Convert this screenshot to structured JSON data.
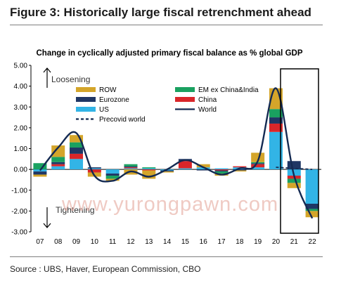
{
  "figure_title": "Figure 3: Historically large fiscal retrenchment ahead",
  "source": "Source : UBS, Haver, European Commission, CBO",
  "watermark": "www.yurongpawn.com",
  "chart_data": {
    "type": "bar",
    "stacked": true,
    "title": "Change in cyclically adjusted primary fiscal balance as % global GDP",
    "xlabel": "",
    "ylabel": "",
    "categories": [
      "07",
      "08",
      "09",
      "10",
      "11",
      "12",
      "13",
      "14",
      "15",
      "16",
      "17",
      "18",
      "19",
      "20",
      "21",
      "22"
    ],
    "ylim": [
      -3.0,
      5.0
    ],
    "y_ticks": [
      "5.00",
      "4.00",
      "3.00",
      "2.00",
      "1.00",
      "0.00",
      "-1.00",
      "-2.00",
      "-3.00"
    ],
    "grid": false,
    "legend_position": "top-left",
    "series": [
      {
        "name": "US",
        "color": "#32b4e6",
        "values": [
          -0.1,
          0.15,
          0.5,
          0.05,
          -0.2,
          0.05,
          0.05,
          -0.05,
          0.05,
          0.1,
          0.05,
          0.1,
          0.1,
          1.8,
          -0.3,
          -1.65
        ]
      },
      {
        "name": "China",
        "color": "#d9262a",
        "values": [
          0.0,
          0.1,
          0.25,
          -0.15,
          0.0,
          0.05,
          -0.05,
          0.0,
          0.35,
          0.0,
          -0.05,
          0.05,
          0.15,
          0.4,
          -0.15,
          0.0
        ]
      },
      {
        "name": "Eurozone",
        "color": "#1f3664",
        "values": [
          -0.15,
          0.1,
          0.3,
          0.05,
          -0.1,
          0.05,
          0.0,
          -0.05,
          0.1,
          -0.05,
          -0.05,
          -0.05,
          0.05,
          0.3,
          0.4,
          -0.25
        ]
      },
      {
        "name": "EM ex China&India",
        "color": "#1aa160",
        "values": [
          0.3,
          0.25,
          0.25,
          0.0,
          -0.15,
          0.1,
          0.05,
          0.0,
          0.0,
          0.0,
          -0.1,
          0.0,
          0.05,
          0.4,
          -0.2,
          -0.1
        ]
      },
      {
        "name": "ROW",
        "color": "#d4a52a",
        "values": [
          -0.1,
          0.55,
          0.35,
          -0.2,
          -0.1,
          -0.25,
          -0.4,
          -0.05,
          0.0,
          0.15,
          -0.1,
          -0.05,
          0.45,
          1.0,
          -0.25,
          -0.3
        ]
      }
    ],
    "lines": [
      {
        "name": "World",
        "color": "#142a52",
        "style": "solid",
        "values": [
          -0.05,
          1.05,
          1.75,
          -0.3,
          -0.55,
          -0.1,
          -0.35,
          0.0,
          0.45,
          0.1,
          -0.25,
          0.05,
          0.4,
          3.9,
          -0.3,
          -2.35
        ]
      },
      {
        "name": "Precovid world",
        "color": "#142a52",
        "style": "dashed",
        "x_range": [
          "20",
          "22"
        ],
        "values": [
          0.1,
          0.05,
          0.0
        ]
      }
    ],
    "legend": [
      "ROW",
      "EM ex China&India",
      "Eurozone",
      "China",
      "US",
      "World",
      "Precovid world"
    ],
    "annotations": [
      "Loosening",
      "Tightening"
    ],
    "highlight_box": [
      "21",
      "22"
    ]
  }
}
